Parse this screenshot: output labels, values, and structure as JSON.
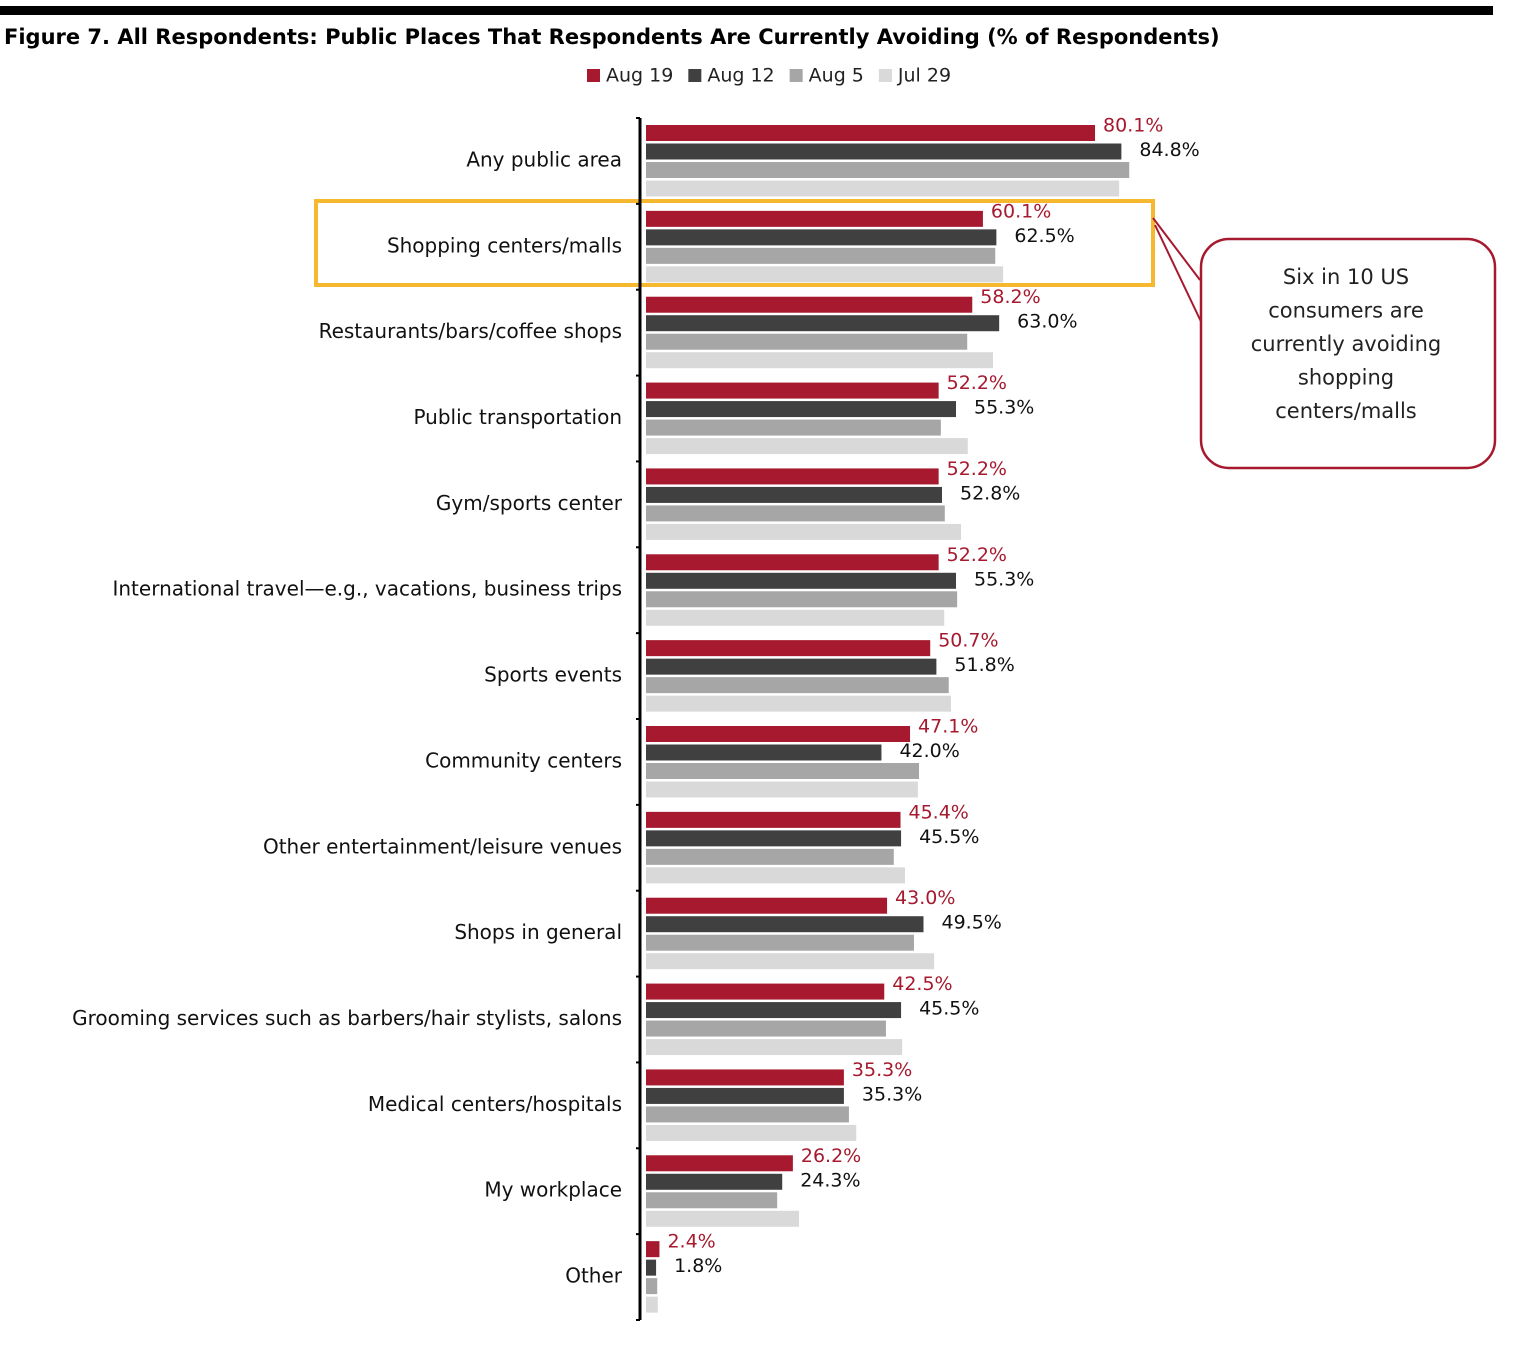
{
  "chart_data": {
    "type": "hbar",
    "title": "Figure 7. All Respondents: Public Places That Respondents Are Currently Avoiding (% of Respondents)",
    "categories": [
      "Any public area",
      "Shopping centers/malls",
      "Restaurants/bars/coffee shops",
      "Public transportation",
      "Gym/sports center",
      "International travel—e.g., vacations, business trips",
      "Sports events",
      "Community centers",
      "Other entertainment/leisure venues",
      "Shops in general",
      "Grooming services such as barbers/hair stylists, salons",
      "Medical centers/hospitals",
      "My workplace",
      "Other"
    ],
    "series": [
      {
        "name": "Aug 19",
        "color": "#a6192e",
        "values": [
          80.1,
          60.1,
          58.2,
          52.2,
          52.2,
          52.2,
          50.7,
          47.1,
          45.4,
          43.0,
          42.5,
          35.3,
          26.2,
          2.4
        ],
        "value_labels": [
          "80.1%",
          "60.1%",
          "58.2%",
          "52.2%",
          "52.2%",
          "52.2%",
          "50.7%",
          "47.1%",
          "45.4%",
          "43.0%",
          "42.5%",
          "35.3%",
          "26.2%",
          "2.4%"
        ]
      },
      {
        "name": "Aug 12",
        "color": "#404040",
        "values": [
          84.8,
          62.5,
          63.0,
          55.3,
          52.8,
          55.3,
          51.8,
          42.0,
          45.5,
          49.5,
          45.5,
          35.3,
          24.3,
          1.8
        ],
        "value_labels": [
          "84.8%",
          "62.5%",
          "63.0%",
          "55.3%",
          "52.8%",
          "55.3%",
          "51.8%",
          "42.0%",
          "45.5%",
          "49.5%",
          "45.5%",
          "35.3%",
          "24.3%",
          "1.8%"
        ]
      },
      {
        "name": "Aug 5",
        "color": "#a6a6a6",
        "values": [
          86.2,
          62.3,
          57.3,
          52.6,
          53.3,
          55.5,
          54.0,
          48.7,
          44.2,
          47.8,
          42.8,
          36.2,
          23.4,
          2.0
        ]
      },
      {
        "name": "Jul 29",
        "color": "#d9d9d9",
        "values": [
          84.4,
          63.7,
          61.9,
          57.4,
          56.2,
          53.2,
          54.4,
          48.5,
          46.2,
          51.4,
          45.7,
          37.5,
          27.3,
          2.1
        ]
      }
    ],
    "xlim": [
      0,
      100
    ],
    "annotation": [
      "Six in 10 US",
      "consumers are",
      "currently avoiding",
      "shopping",
      "centers/malls"
    ]
  }
}
